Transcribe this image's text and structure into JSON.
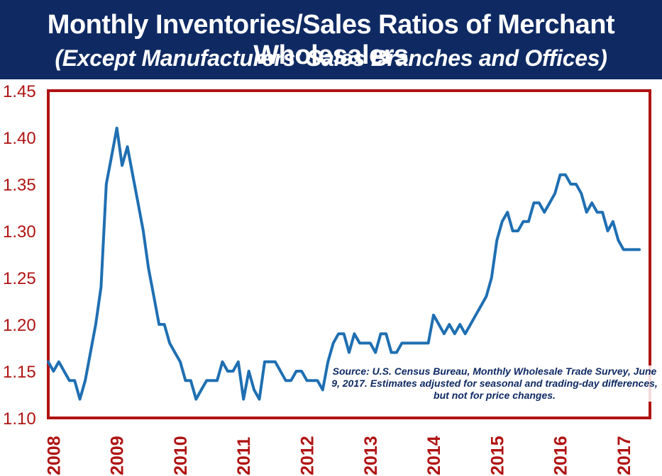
{
  "title": "Monthly Inventories/Sales Ratios of Merchant Wholesalers",
  "subtitle": "(Except Manufacturers’ Sales Branches and Offices)",
  "annotation": "Source: U.S. Census Bureau, Monthly Wholesale Trade Survey, June 9, 2017. Estimates adjusted for seasonal and trading-day differences, but not for price changes.",
  "colors": {
    "banner": "#0f2a63",
    "frame": "#b01313",
    "line": "#1f6fb2",
    "tick_text": "#b01313"
  },
  "chart_data": {
    "type": "line",
    "title": "Monthly Inventories/Sales Ratios of Merchant Wholesalers",
    "subtitle": "(Except Manufacturers’ Sales Branches and Offices)",
    "xlabel": "",
    "ylabel": "",
    "ylim": [
      1.1,
      1.45
    ],
    "xlim": [
      "2007-12",
      "2017-06"
    ],
    "yticks": [
      "1.10",
      "1.15",
      "1.20",
      "1.25",
      "1.30",
      "1.35",
      "1.40",
      "1.45"
    ],
    "xticks": [
      "2008",
      "2009",
      "2010",
      "2011",
      "2012",
      "2013",
      "2014",
      "2015",
      "2016",
      "2017"
    ],
    "grid": false,
    "legend": "none",
    "series": [
      {
        "x": [
          "2007-12",
          "2008-01",
          "2008-02",
          "2008-03",
          "2008-04",
          "2008-05",
          "2008-06",
          "2008-07",
          "2008-08",
          "2008-09",
          "2008-10",
          "2008-11",
          "2008-12",
          "2009-01",
          "2009-02",
          "2009-03",
          "2009-04",
          "2009-05",
          "2009-06",
          "2009-07",
          "2009-08",
          "2009-09",
          "2009-10",
          "2009-11",
          "2009-12",
          "2010-01",
          "2010-02",
          "2010-03",
          "2010-04",
          "2010-05",
          "2010-06",
          "2010-07",
          "2010-08",
          "2010-09",
          "2010-10",
          "2010-11",
          "2010-12",
          "2011-01",
          "2011-02",
          "2011-03",
          "2011-04",
          "2011-05",
          "2011-06",
          "2011-07",
          "2011-08",
          "2011-09",
          "2011-10",
          "2011-11",
          "2011-12",
          "2012-01",
          "2012-02",
          "2012-03",
          "2012-04",
          "2012-05",
          "2012-06",
          "2012-07",
          "2012-08",
          "2012-09",
          "2012-10",
          "2012-11",
          "2012-12",
          "2013-01",
          "2013-02",
          "2013-03",
          "2013-04",
          "2013-05",
          "2013-06",
          "2013-07",
          "2013-08",
          "2013-09",
          "2013-10",
          "2013-11",
          "2013-12",
          "2014-01",
          "2014-02",
          "2014-03",
          "2014-04",
          "2014-05",
          "2014-06",
          "2014-07",
          "2014-08",
          "2014-09",
          "2014-10",
          "2014-11",
          "2014-12",
          "2015-01",
          "2015-02",
          "2015-03",
          "2015-04",
          "2015-05",
          "2015-06",
          "2015-07",
          "2015-08",
          "2015-09",
          "2015-10",
          "2015-11",
          "2015-12",
          "2016-01",
          "2016-02",
          "2016-03",
          "2016-04",
          "2016-05",
          "2016-06",
          "2016-07",
          "2016-08",
          "2016-09",
          "2016-10",
          "2016-11",
          "2016-12",
          "2017-01",
          "2017-02",
          "2017-03",
          "2017-04"
        ],
        "values": [
          1.16,
          1.15,
          1.16,
          1.15,
          1.14,
          1.14,
          1.12,
          1.14,
          1.17,
          1.2,
          1.24,
          1.35,
          1.38,
          1.41,
          1.37,
          1.39,
          1.36,
          1.33,
          1.3,
          1.26,
          1.23,
          1.2,
          1.2,
          1.18,
          1.17,
          1.16,
          1.14,
          1.14,
          1.12,
          1.13,
          1.14,
          1.14,
          1.14,
          1.16,
          1.15,
          1.15,
          1.16,
          1.12,
          1.15,
          1.13,
          1.12,
          1.16,
          1.16,
          1.16,
          1.15,
          1.14,
          1.14,
          1.15,
          1.15,
          1.14,
          1.14,
          1.14,
          1.13,
          1.16,
          1.18,
          1.19,
          1.19,
          1.17,
          1.19,
          1.18,
          1.18,
          1.18,
          1.17,
          1.19,
          1.19,
          1.17,
          1.17,
          1.18,
          1.18,
          1.18,
          1.18,
          1.18,
          1.18,
          1.21,
          1.2,
          1.19,
          1.2,
          1.19,
          1.2,
          1.19,
          1.2,
          1.21,
          1.22,
          1.23,
          1.25,
          1.29,
          1.31,
          1.32,
          1.3,
          1.3,
          1.31,
          1.31,
          1.33,
          1.33,
          1.32,
          1.33,
          1.34,
          1.36,
          1.36,
          1.35,
          1.35,
          1.34,
          1.32,
          1.33,
          1.32,
          1.32,
          1.3,
          1.31,
          1.29,
          1.28,
          1.28,
          1.28,
          1.28
        ]
      }
    ]
  }
}
